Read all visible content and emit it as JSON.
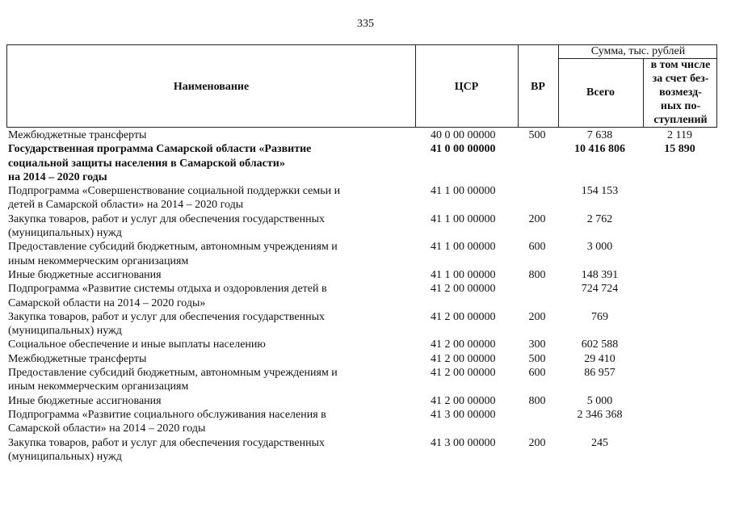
{
  "page_number": "335",
  "header": {
    "name": "Наименование",
    "csr": "ЦСР",
    "vr": "ВР",
    "sum_group": "Сумма, тыс. рублей",
    "total": "Всего",
    "free": "в том числе\nза счет без-\nвозмезд-\nных по-\nступлений"
  },
  "rows": [
    {
      "name": "Межбюджетные трансферты",
      "csr": "40 0 00 00000",
      "vr": "500",
      "total": "7 638",
      "free": "2 119",
      "bold": false
    },
    {
      "name": "Государственная программа Самарской области «Развитие\nсоциальной защиты населения в Самарской области»\nна 2014 – 2020 годы",
      "csr": "41 0 00 00000",
      "vr": "",
      "total": "10 416 806",
      "free": "15 890",
      "bold": true
    },
    {
      "name": "Подпрограмма «Совершенствование социальной поддержки семьи и\nдетей в Самарской области» на 2014 – 2020 годы",
      "csr": "41 1 00 00000",
      "vr": "",
      "total": "154 153",
      "free": "",
      "bold": false
    },
    {
      "name": "Закупка товаров, работ и услуг для обеспечения государственных\n(муниципальных) нужд",
      "csr": "41 1 00 00000",
      "vr": "200",
      "total": "2 762",
      "free": "",
      "bold": false
    },
    {
      "name": "Предоставление субсидий бюджетным, автономным учреждениям и\nиным некоммерческим организациям",
      "csr": "41 1 00 00000",
      "vr": "600",
      "total": "3 000",
      "free": "",
      "bold": false
    },
    {
      "name": "Иные бюджетные ассигнования",
      "csr": "41 1 00 00000",
      "vr": "800",
      "total": "148 391",
      "free": "",
      "bold": false
    },
    {
      "name": "Подпрограмма «Развитие системы отдыха и оздоровления детей в\nСамарской области на 2014 – 2020 годы»",
      "csr": "41 2 00 00000",
      "vr": "",
      "total": "724 724",
      "free": "",
      "bold": false
    },
    {
      "name": "Закупка товаров, работ и услуг для обеспечения государственных\n(муниципальных) нужд",
      "csr": "41 2 00 00000",
      "vr": "200",
      "total": "769",
      "free": "",
      "bold": false
    },
    {
      "name": "Социальное обеспечение и иные выплаты населению",
      "csr": "41 2 00 00000",
      "vr": "300",
      "total": "602 588",
      "free": "",
      "bold": false
    },
    {
      "name": "Межбюджетные трансферты",
      "csr": "41 2 00 00000",
      "vr": "500",
      "total": "29 410",
      "free": "",
      "bold": false
    },
    {
      "name": "Предоставление субсидий бюджетным, автономным учреждениям и\nиным некоммерческим организациям",
      "csr": "41 2 00 00000",
      "vr": "600",
      "total": "86 957",
      "free": "",
      "bold": false
    },
    {
      "name": "Иные бюджетные ассигнования",
      "csr": "41 2 00 00000",
      "vr": "800",
      "total": "5 000",
      "free": "",
      "bold": false
    },
    {
      "name": "Подпрограмма «Развитие социального обслуживания населения в\nСамарской области» на 2014 – 2020 годы",
      "csr": "41 3 00 00000",
      "vr": "",
      "total": "2 346 368",
      "free": "",
      "bold": false
    },
    {
      "name": "Закупка товаров, работ и услуг для обеспечения государственных\n(муниципальных) нужд",
      "csr": "41 3 00 00000",
      "vr": "200",
      "total": "245",
      "free": "",
      "bold": false
    }
  ]
}
